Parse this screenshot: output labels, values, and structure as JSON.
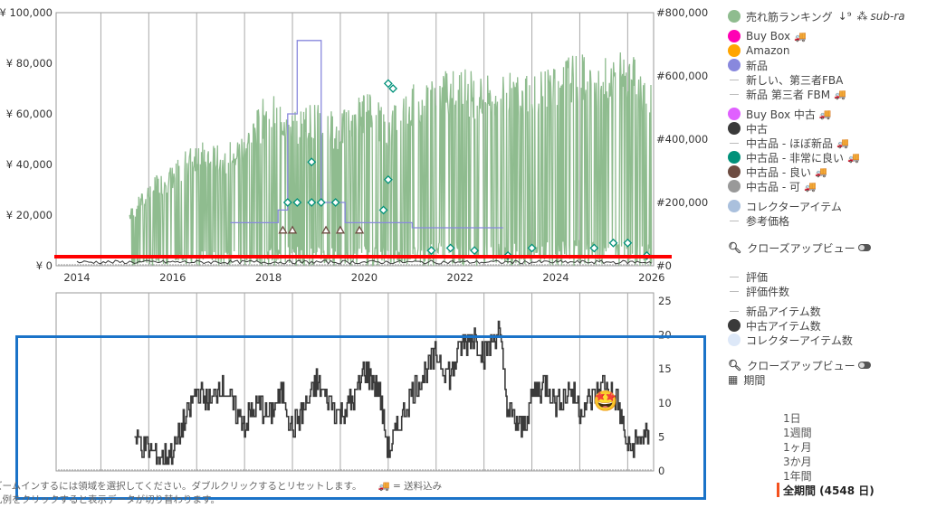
{
  "top_chart": {
    "left_axis": [
      "¥ 0",
      "¥ 20,000",
      "¥ 40,000",
      "¥ 60,000",
      "¥ 80,000",
      "¥ 100,000"
    ],
    "right_axis": [
      "#0",
      "#200,000",
      "#400,000",
      "#600,000",
      "#800,000"
    ],
    "x_axis": [
      "2014",
      "2016",
      "2018",
      "2020",
      "2022",
      "2024",
      "2026"
    ]
  },
  "bottom_chart": {
    "right_axis": [
      "0",
      "5",
      "10",
      "15",
      "20",
      "25"
    ]
  },
  "chart_data": {
    "type": "line",
    "price_range": [
      0,
      100000
    ],
    "rank_range": [
      0,
      800000
    ],
    "count_range": [
      0,
      25
    ],
    "x_range": [
      2013.6,
      2026.0
    ],
    "sales_rank": [
      [
        2015.1,
        180000
      ],
      [
        2015.6,
        280000
      ],
      [
        2016,
        320000
      ],
      [
        2016.5,
        400000
      ],
      [
        2017,
        380000
      ],
      [
        2017.5,
        420000
      ],
      [
        2018,
        560000
      ],
      [
        2018.5,
        500000
      ],
      [
        2019,
        520000
      ],
      [
        2019.5,
        480000
      ],
      [
        2020,
        560000
      ],
      [
        2020.5,
        500000
      ],
      [
        2021,
        580000
      ],
      [
        2021.5,
        620000
      ],
      [
        2022,
        640000
      ],
      [
        2022.5,
        600000
      ],
      [
        2023,
        620000
      ],
      [
        2023.5,
        640000
      ],
      [
        2024,
        660000
      ],
      [
        2024.5,
        680000
      ],
      [
        2025,
        660000
      ],
      [
        2025.5,
        700000
      ],
      [
        2026,
        600000
      ]
    ],
    "new_price": [
      [
        2017.2,
        17000
      ],
      [
        2018,
        17000
      ],
      [
        2018.2,
        22000
      ],
      [
        2018.4,
        60000
      ],
      [
        2018.6,
        89000
      ],
      [
        2019,
        89000
      ],
      [
        2019.1,
        25000
      ],
      [
        2019.6,
        17000
      ],
      [
        2020.6,
        17000
      ],
      [
        2021,
        15000
      ],
      [
        2022.9,
        15000
      ]
    ],
    "used_very_good_points": [
      [
        2018.4,
        25000
      ],
      [
        2018.6,
        25000
      ],
      [
        2018.9,
        25000
      ],
      [
        2019.1,
        25000
      ],
      [
        2019.4,
        25000
      ],
      [
        2018.9,
        41000
      ],
      [
        2020.4,
        22000
      ],
      [
        2020.5,
        34000
      ],
      [
        2020.5,
        72000
      ],
      [
        2020.6,
        70000
      ],
      [
        2021.4,
        6000
      ],
      [
        2021.8,
        7000
      ],
      [
        2022.3,
        6000
      ],
      [
        2023,
        4000
      ],
      [
        2023.5,
        7000
      ],
      [
        2024.8,
        7000
      ],
      [
        2025.2,
        9000
      ],
      [
        2025.5,
        9000
      ],
      [
        2025.9,
        4000
      ]
    ],
    "used_good_points": [
      [
        2018.3,
        14000
      ],
      [
        2018.5,
        14000
      ],
      [
        2019.2,
        14000
      ],
      [
        2019.5,
        14000
      ],
      [
        2019.9,
        14000
      ]
    ],
    "used_count": [
      [
        2015.2,
        5
      ],
      [
        2015.5,
        3
      ],
      [
        2015.8,
        2
      ],
      [
        2016,
        3
      ],
      [
        2016.3,
        8
      ],
      [
        2016.5,
        12
      ],
      [
        2016.8,
        10
      ],
      [
        2017,
        13
      ],
      [
        2017.3,
        9
      ],
      [
        2017.5,
        7
      ],
      [
        2017.8,
        10
      ],
      [
        2018,
        8
      ],
      [
        2018.3,
        12
      ],
      [
        2018.5,
        6
      ],
      [
        2018.8,
        10
      ],
      [
        2019,
        13
      ],
      [
        2019.3,
        10
      ],
      [
        2019.5,
        8
      ],
      [
        2019.8,
        11
      ],
      [
        2020,
        15
      ],
      [
        2020.3,
        12
      ],
      [
        2020.5,
        3
      ],
      [
        2020.8,
        8
      ],
      [
        2021,
        12
      ],
      [
        2021.3,
        15
      ],
      [
        2021.5,
        17
      ],
      [
        2021.8,
        14
      ],
      [
        2022,
        18
      ],
      [
        2022.3,
        20
      ],
      [
        2022.5,
        17
      ],
      [
        2022.8,
        21
      ],
      [
        2023,
        9
      ],
      [
        2023.3,
        6
      ],
      [
        2023.5,
        11
      ],
      [
        2023.8,
        13
      ],
      [
        2024,
        10
      ],
      [
        2024.3,
        12
      ],
      [
        2024.5,
        9
      ],
      [
        2024.8,
        11
      ],
      [
        2025,
        13
      ],
      [
        2025.3,
        10
      ],
      [
        2025.5,
        3
      ],
      [
        2025.8,
        5
      ]
    ]
  },
  "legend": {
    "rank": "売れ筋ランキング",
    "sub": "sub-ra",
    "buybox": "Buy Box",
    "amazon": "Amazon",
    "new": "新品",
    "new_fba": "新しい、第三者FBA",
    "new_fbm": "新品 第三者 FBM",
    "buybox_used": "Buy Box 中古",
    "used": "中古",
    "used_like_new": "中古品 - ほぼ新品",
    "used_very_good": "中古品 - 非常に良い",
    "used_good": "中古品 - 良い",
    "used_acceptable": "中古品 - 可",
    "collectible": "コレクターアイテム",
    "list_price": "参考価格",
    "closeup": "クローズアップビュー",
    "rating": "評価",
    "rating_count": "評価件数",
    "new_count": "新品アイテム数",
    "used_count": "中古アイテム数",
    "collectible_count": "コレクターアイテム数",
    "closeup2": "クローズアップビュー",
    "period_label": "期間"
  },
  "colors": {
    "rank": "#8fbc8f",
    "buybox": "#ff00b4",
    "amazon": "#ffa500",
    "new": "#8888dd",
    "buybox_used": "#e060ff",
    "used": "#3a3a3a",
    "used_very_good": "#00917a",
    "used_good": "#6d4c41",
    "used_acceptable": "#999999",
    "collectible": "#aac0dd",
    "collectible_count": "#dde8f8"
  },
  "periods": [
    "1日",
    "1週間",
    "1ヶ月",
    "3か月",
    "1年間"
  ],
  "period_selected": "全期間 (4548 日)",
  "footer": {
    "line1": "ズームインするには領域を選択してください。ダブルクリックするとリセットします。",
    "shipping": "= 送料込み",
    "line2": "凡例をクリックすると表示データが切り替わります。"
  },
  "truck": "🚚",
  "emoji": "🤩"
}
